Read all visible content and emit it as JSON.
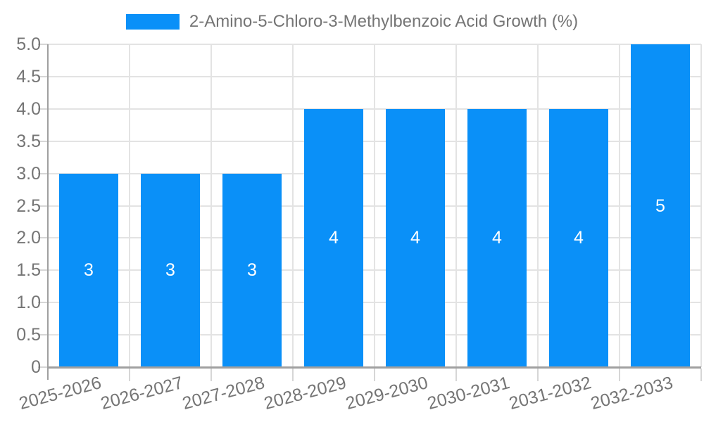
{
  "chart_data": {
    "type": "bar",
    "legend": "2-Amino-5-Chloro-3-Methylbenzoic Acid Growth (%)",
    "categories": [
      "2025-2026",
      "2026-2027",
      "2027-2028",
      "2028-2029",
      "2029-2030",
      "2030-2031",
      "2031-2032",
      "2032-2033"
    ],
    "values": [
      3,
      3,
      3,
      4,
      4,
      4,
      4,
      5
    ],
    "value_labels": [
      "3",
      "3",
      "3",
      "4",
      "4",
      "4",
      "4",
      "5"
    ],
    "ylim": [
      0,
      5
    ],
    "ytick_step": 0.5,
    "ytick_labels": [
      "0",
      "0.5",
      "1.0",
      "1.5",
      "2.0",
      "2.5",
      "3.0",
      "3.5",
      "4.0",
      "4.5",
      "5.0"
    ],
    "xlabel": "",
    "ylabel": "",
    "grid": true,
    "legend_position": "top-center",
    "colors": {
      "bar": "#0A90F8",
      "axis_label": "#757575",
      "legend_text": "#757575",
      "value_label": "#FFFFFF",
      "gridline": "#E3E3E3",
      "axis_line": "#A0A0A0",
      "tick": "#D6D6D6",
      "background": "#FFFFFF"
    }
  }
}
